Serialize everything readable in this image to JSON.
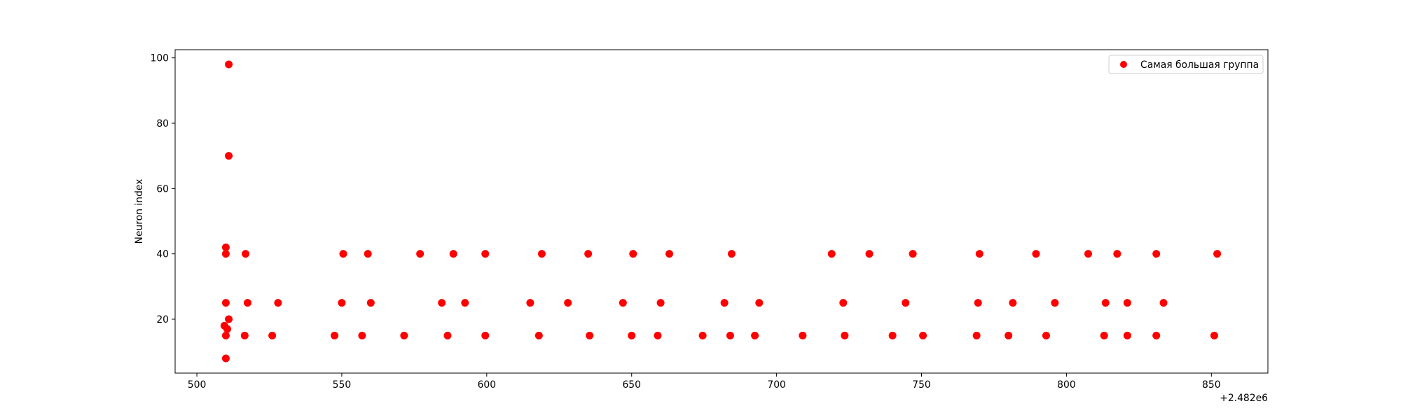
{
  "chart_data": {
    "type": "scatter",
    "title": "",
    "xlabel": "",
    "ylabel": "Neuron index",
    "x_offset_label": "+2.482e6",
    "xlim": [
      492.5,
      869.5
    ],
    "ylim": [
      3.5,
      102.5
    ],
    "xticks": [
      "500",
      "550",
      "600",
      "650",
      "700",
      "750",
      "800",
      "850"
    ],
    "yticks": [
      "20",
      "40",
      "60",
      "80",
      "100"
    ],
    "grid": false,
    "legend": "top-right",
    "series": [
      {
        "name": "Самая большая группа",
        "color": "#ff0000",
        "points": [
          [
            509.5,
            18
          ],
          [
            510,
            42
          ],
          [
            510,
            40
          ],
          [
            510,
            25
          ],
          [
            510,
            15
          ],
          [
            510,
            8
          ],
          [
            510.5,
            17
          ],
          [
            511,
            98
          ],
          [
            511,
            70
          ],
          [
            511,
            20
          ],
          [
            516.5,
            15
          ],
          [
            516.8,
            40
          ],
          [
            517.5,
            25
          ],
          [
            526,
            15
          ],
          [
            528,
            25
          ],
          [
            547.5,
            15
          ],
          [
            550,
            25
          ],
          [
            550.5,
            40
          ],
          [
            557,
            15
          ],
          [
            559,
            40
          ],
          [
            560,
            25
          ],
          [
            571.5,
            15
          ],
          [
            577,
            40
          ],
          [
            584.5,
            25
          ],
          [
            586.5,
            15
          ],
          [
            588.5,
            40
          ],
          [
            592.5,
            25
          ],
          [
            599.5,
            40
          ],
          [
            599.5,
            15
          ],
          [
            615,
            25
          ],
          [
            618,
            15
          ],
          [
            619,
            40
          ],
          [
            628,
            25
          ],
          [
            635,
            40
          ],
          [
            635.5,
            15
          ],
          [
            647,
            25
          ],
          [
            650,
            15
          ],
          [
            650.5,
            40
          ],
          [
            659,
            15
          ],
          [
            660,
            25
          ],
          [
            663,
            40
          ],
          [
            674.5,
            15
          ],
          [
            682,
            25
          ],
          [
            684,
            15
          ],
          [
            684.5,
            40
          ],
          [
            692.5,
            15
          ],
          [
            694,
            25
          ],
          [
            709,
            15
          ],
          [
            719,
            40
          ],
          [
            723,
            25
          ],
          [
            723.5,
            15
          ],
          [
            732,
            40
          ],
          [
            740,
            15
          ],
          [
            744.5,
            25
          ],
          [
            747,
            40
          ],
          [
            750.5,
            15
          ],
          [
            769,
            15
          ],
          [
            769.5,
            25
          ],
          [
            770,
            40
          ],
          [
            780,
            15
          ],
          [
            781.5,
            25
          ],
          [
            789.5,
            40
          ],
          [
            793,
            15
          ],
          [
            796,
            25
          ],
          [
            807.5,
            40
          ],
          [
            813,
            15
          ],
          [
            813.5,
            25
          ],
          [
            817.5,
            40
          ],
          [
            821,
            25
          ],
          [
            821,
            15
          ],
          [
            831,
            40
          ],
          [
            831,
            15
          ],
          [
            833.5,
            25
          ],
          [
            851,
            15
          ],
          [
            852,
            40
          ]
        ]
      }
    ]
  }
}
